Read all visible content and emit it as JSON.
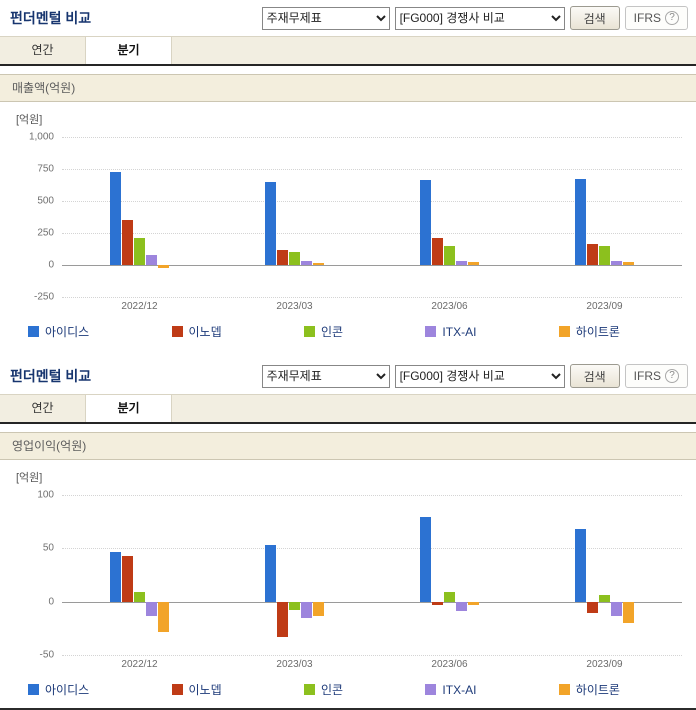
{
  "panels": [
    {
      "title": "펀더멘털 비교",
      "toolbar": {
        "statement_select_value": "주재무제표",
        "compare_select_value": "[FG000] 경쟁사 비교",
        "search_button": "검색",
        "ifrs_label": "IFRS",
        "help_icon": "?"
      },
      "tabs": [
        {
          "label": "연간",
          "active": false
        },
        {
          "label": "분기",
          "active": true
        }
      ],
      "section_title": "매출액(억원)"
    },
    {
      "title": "펀더멘털 비교",
      "toolbar": {
        "statement_select_value": "주재무제표",
        "compare_select_value": "[FG000] 경쟁사 비교",
        "search_button": "검색",
        "ifrs_label": "IFRS",
        "help_icon": "?"
      },
      "tabs": [
        {
          "label": "연간",
          "active": false
        },
        {
          "label": "분기",
          "active": true
        }
      ],
      "section_title": "영업이익(억원)"
    }
  ],
  "chart_data": [
    {
      "type": "bar",
      "title": "매출액(억원)",
      "unit_label": "[억원]",
      "categories": [
        "2022/12",
        "2023/03",
        "2023/06",
        "2023/09"
      ],
      "series": [
        {
          "name": "아이디스",
          "color": "#2c72d2",
          "values": [
            730,
            650,
            665,
            670
          ]
        },
        {
          "name": "이노뎁",
          "color": "#bf3b16",
          "values": [
            350,
            115,
            215,
            165
          ]
        },
        {
          "name": "인콘",
          "color": "#8cc01e",
          "values": [
            210,
            105,
            145,
            150
          ]
        },
        {
          "name": "ITX-AI",
          "color": "#9d85dd",
          "values": [
            80,
            30,
            35,
            35
          ]
        },
        {
          "name": "하이트론",
          "color": "#f2a429",
          "values": [
            -20,
            15,
            20,
            20
          ]
        }
      ],
      "xlabel": "",
      "ylabel": "억원",
      "ylim": [
        -250,
        1000
      ],
      "yticks": [
        1000,
        750,
        500,
        250,
        0,
        -250
      ],
      "grid": true,
      "legend_position": "bottom"
    },
    {
      "type": "bar",
      "title": "영업이익(억원)",
      "unit_label": "[억원]",
      "categories": [
        "2022/12",
        "2023/03",
        "2023/06",
        "2023/09"
      ],
      "series": [
        {
          "name": "아이디스",
          "color": "#2c72d2",
          "values": [
            47,
            53,
            79,
            68
          ]
        },
        {
          "name": "이노뎁",
          "color": "#bf3b16",
          "values": [
            43,
            -33,
            -3,
            -11
          ]
        },
        {
          "name": "인콘",
          "color": "#8cc01e",
          "values": [
            9,
            -8,
            9,
            6
          ]
        },
        {
          "name": "ITX-AI",
          "color": "#9d85dd",
          "values": [
            -13,
            -15,
            -9,
            -13
          ]
        },
        {
          "name": "하이트론",
          "color": "#f2a429",
          "values": [
            -28,
            -13,
            -3,
            -20
          ]
        }
      ],
      "xlabel": "",
      "ylabel": "억원",
      "ylim": [
        -50,
        100
      ],
      "yticks": [
        100,
        50,
        0,
        -50
      ],
      "grid": true,
      "legend_position": "bottom"
    }
  ]
}
